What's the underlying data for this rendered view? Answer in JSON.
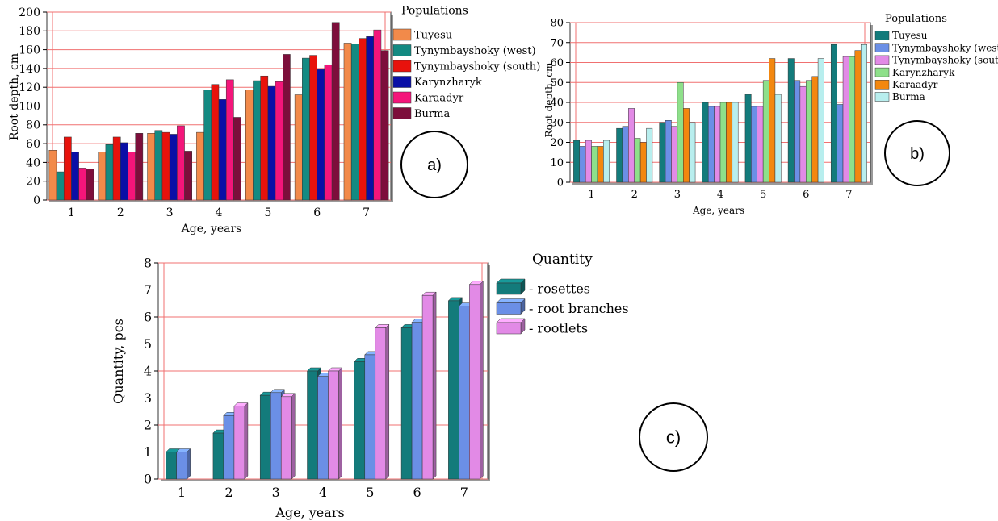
{
  "chart_data": [
    {
      "id": "a",
      "type": "bar",
      "panel_tag": "a)",
      "xlabel": "Age, years",
      "ylabel": "Root depth, cm",
      "legend_title": "Populations",
      "legend_position": "right",
      "grid": true,
      "ylim": [
        0,
        200
      ],
      "yticks": [
        0,
        20,
        40,
        60,
        80,
        100,
        120,
        140,
        160,
        180,
        200
      ],
      "categories": [
        "1",
        "2",
        "3",
        "4",
        "5",
        "6",
        "7"
      ],
      "series": [
        {
          "name": "Tuyesu",
          "color": "#f28a4a",
          "values": [
            53,
            51,
            71,
            72,
            117,
            112,
            167
          ]
        },
        {
          "name": "Tynymbayshoky (west)",
          "color": "#138a82",
          "values": [
            30,
            59,
            74,
            117,
            127,
            151,
            166
          ]
        },
        {
          "name": "Tynymbayshoky (south)",
          "color": "#e8120c",
          "values": [
            67,
            67,
            72,
            123,
            132,
            154,
            172
          ]
        },
        {
          "name": "Karynzharyk",
          "color": "#0a0fa6",
          "values": [
            51,
            61,
            70,
            107,
            121,
            139,
            174
          ]
        },
        {
          "name": "Karaadyr",
          "color": "#f4157a",
          "values": [
            34,
            51,
            79,
            128,
            126,
            144,
            181
          ]
        },
        {
          "name": "Burma",
          "color": "#7d0e3b",
          "values": [
            33,
            71,
            52,
            88,
            155,
            189,
            159
          ]
        }
      ]
    },
    {
      "id": "b",
      "type": "bar",
      "panel_tag": "b)",
      "xlabel": "Age, years",
      "ylabel": "Root depth, cm",
      "legend_title": "Populations",
      "legend_position": "right",
      "grid": true,
      "ylim": [
        0,
        80
      ],
      "yticks": [
        0,
        10,
        20,
        30,
        40,
        50,
        60,
        70,
        80
      ],
      "categories": [
        "1",
        "2",
        "3",
        "4",
        "5",
        "6",
        "7"
      ],
      "series": [
        {
          "name": "Tuyesu",
          "color": "#137b7b",
          "values": [
            21,
            27,
            30,
            40,
            44,
            62,
            69
          ]
        },
        {
          "name": "Tynymbayshoky (west)",
          "color": "#6b8fe6",
          "values": [
            18,
            28,
            31,
            38,
            38,
            51,
            39
          ]
        },
        {
          "name": "Tynymbayshoky (south)",
          "color": "#e28ae6",
          "values": [
            21,
            37,
            28,
            38,
            38,
            48,
            63
          ]
        },
        {
          "name": "Karynzharyk",
          "color": "#8ee08a",
          "values": [
            18,
            22,
            50,
            40,
            51,
            51,
            63
          ]
        },
        {
          "name": "Karaadyr",
          "color": "#f3870f",
          "values": [
            18,
            20,
            37,
            40,
            62,
            53,
            66
          ]
        },
        {
          "name": "Burma",
          "color": "#b8eeee",
          "values": [
            21,
            27,
            30,
            40,
            44,
            62,
            69
          ]
        }
      ]
    },
    {
      "id": "c",
      "type": "bar",
      "panel_tag": "c)",
      "xlabel": "Age, years",
      "ylabel": "Quantity, pcs",
      "legend_title": "Quantity",
      "legend_position": "right",
      "grid": true,
      "ylim": [
        0,
        8
      ],
      "yticks": [
        0,
        1,
        2,
        3,
        4,
        5,
        6,
        7,
        8
      ],
      "categories": [
        "1",
        "2",
        "3",
        "4",
        "5",
        "6",
        "7"
      ],
      "series": [
        {
          "name": "- rosettes",
          "color": "#137b7b",
          "values": [
            1,
            1.7,
            3.1,
            4,
            4.35,
            5.6,
            6.6
          ]
        },
        {
          "name": "- root branches",
          "color": "#6b8fe6",
          "values": [
            1,
            2.35,
            3.2,
            3.8,
            4.6,
            5.8,
            6.4
          ]
        },
        {
          "name": "- rootlets",
          "color": "#e28ae6",
          "values": [
            null,
            2.7,
            3.05,
            4,
            5.6,
            6.8,
            7.2
          ]
        }
      ]
    }
  ]
}
